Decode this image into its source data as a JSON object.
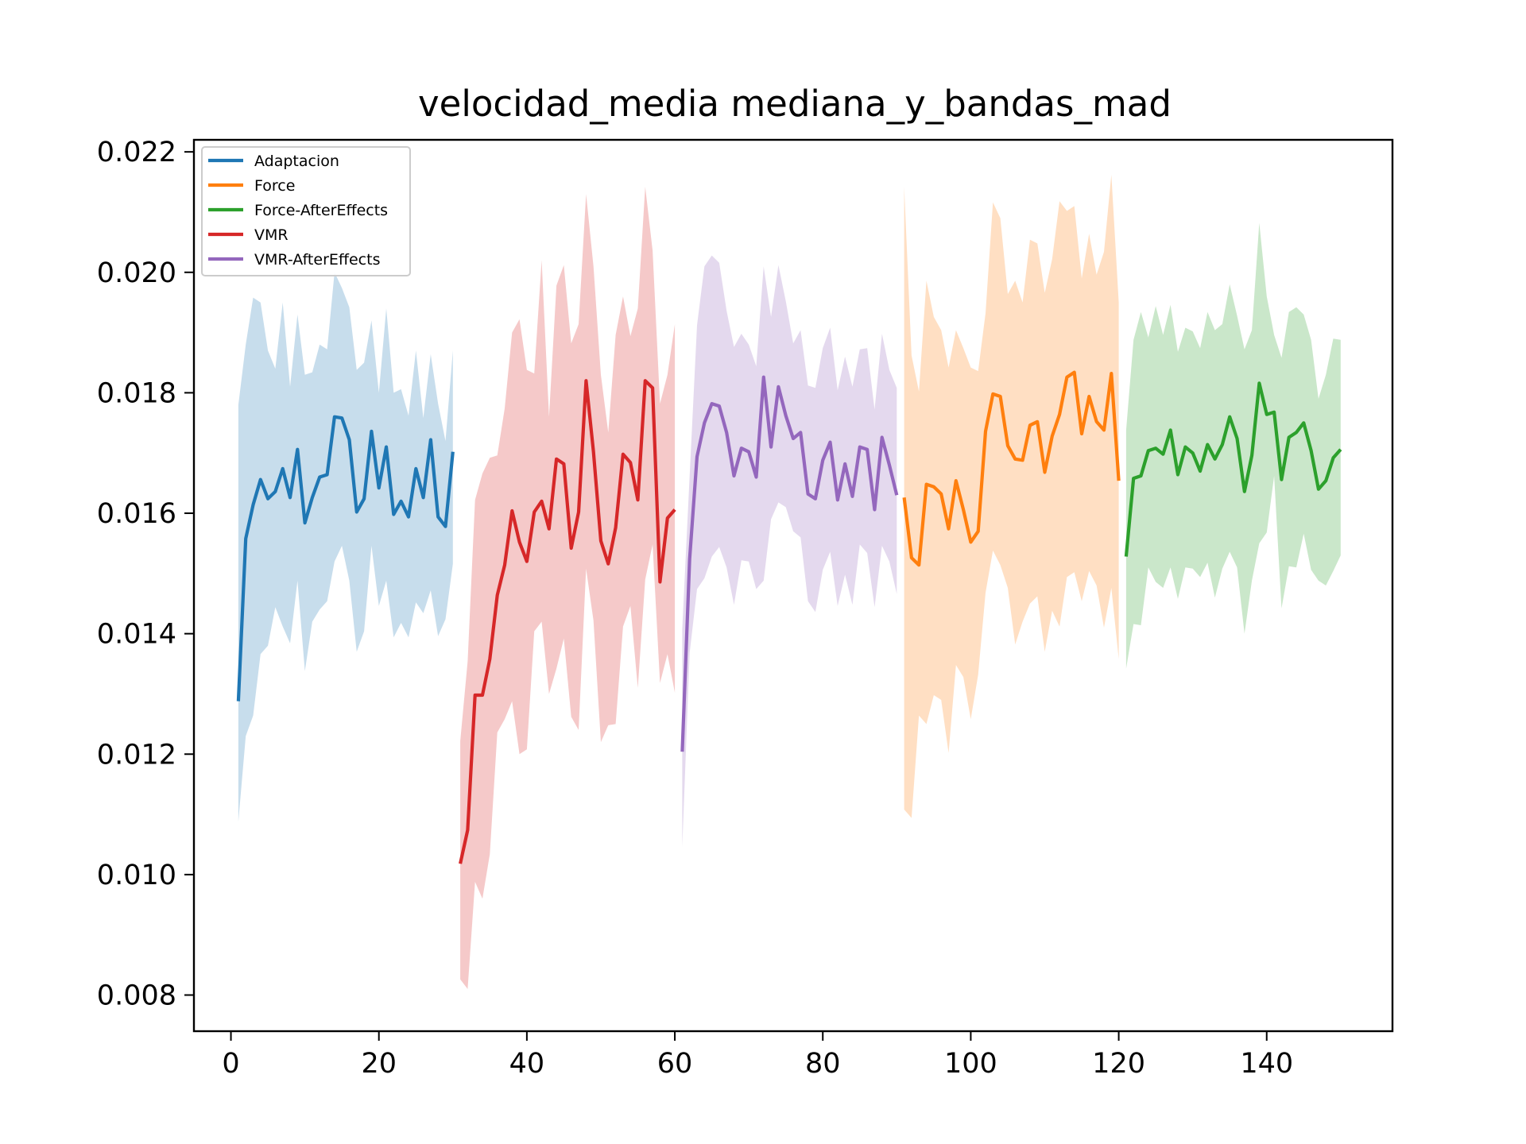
{
  "chart_data": {
    "type": "line",
    "title": "velocidad_media mediana_y_bandas_mad",
    "xlabel": "",
    "ylabel": "",
    "xlim": [
      -5,
      157
    ],
    "ylim": [
      0.0074,
      0.0222
    ],
    "xticks": [
      0,
      20,
      40,
      60,
      80,
      100,
      120,
      140
    ],
    "xtick_labels": [
      "0",
      "20",
      "40",
      "60",
      "80",
      "100",
      "120",
      "140"
    ],
    "yticks": [
      0.008,
      0.01,
      0.012,
      0.014,
      0.016,
      0.018,
      0.02,
      0.022
    ],
    "ytick_labels": [
      "0.008",
      "0.010",
      "0.012",
      "0.014",
      "0.016",
      "0.018",
      "0.020",
      "0.022"
    ],
    "grid": false,
    "legend_position": "top-left",
    "series": [
      {
        "name": "Adaptacion",
        "color": "#1f77b4",
        "x_start": 1,
        "median": [
          0.01288,
          0.01558,
          0.01614,
          0.01656,
          0.01624,
          0.01636,
          0.01674,
          0.01626,
          0.01706,
          0.01584,
          0.01626,
          0.0166,
          0.01664,
          0.0176,
          0.01758,
          0.01722,
          0.01602,
          0.01624,
          0.01736,
          0.01642,
          0.0171,
          0.01598,
          0.0162,
          0.01594,
          0.01674,
          0.01626,
          0.01722,
          0.01594,
          0.01578,
          0.01702
        ],
        "upper": [
          0.0178,
          0.0188,
          0.01958,
          0.0195,
          0.0187,
          0.0184,
          0.0195,
          0.0181,
          0.0193,
          0.0183,
          0.01834,
          0.0188,
          0.01872,
          0.02,
          0.01974,
          0.01942,
          0.01838,
          0.0185,
          0.0192,
          0.018,
          0.0194,
          0.018,
          0.01806,
          0.01762,
          0.0187,
          0.01758,
          0.01864,
          0.01782,
          0.0172,
          0.0187
        ],
        "lower": [
          0.01088,
          0.0123,
          0.01264,
          0.01366,
          0.0138,
          0.01444,
          0.01412,
          0.01384,
          0.01488,
          0.01338,
          0.0142,
          0.0144,
          0.01454,
          0.0152,
          0.01546,
          0.01488,
          0.0137,
          0.01404,
          0.01546,
          0.01446,
          0.01488,
          0.01394,
          0.01418,
          0.01394,
          0.01452,
          0.01434,
          0.01472,
          0.01396,
          0.01424,
          0.01516
        ]
      },
      {
        "name": "Force",
        "color": "#ff7f0e",
        "x_start": 91,
        "median": [
          0.01626,
          0.01526,
          0.01514,
          0.01648,
          0.01644,
          0.01632,
          0.01574,
          0.01654,
          0.01606,
          0.01552,
          0.0157,
          0.01736,
          0.01798,
          0.01794,
          0.01712,
          0.0169,
          0.01688,
          0.01746,
          0.01752,
          0.01668,
          0.01728,
          0.01764,
          0.01826,
          0.01834,
          0.01732,
          0.01794,
          0.01752,
          0.01738,
          0.01832,
          0.01654
        ],
        "upper": [
          0.02142,
          0.01862,
          0.01802,
          0.01986,
          0.01926,
          0.01904,
          0.01842,
          0.01904,
          0.01874,
          0.01842,
          0.01836,
          0.01932,
          0.02116,
          0.0209,
          0.01964,
          0.01986,
          0.0195,
          0.02054,
          0.02048,
          0.01966,
          0.02022,
          0.02118,
          0.02102,
          0.0211,
          0.0199,
          0.02064,
          0.01996,
          0.02034,
          0.02162,
          0.0195
        ],
        "lower": [
          0.01108,
          0.01094,
          0.01264,
          0.0125,
          0.01298,
          0.0129,
          0.01202,
          0.01348,
          0.01328,
          0.01258,
          0.01332,
          0.01468,
          0.01538,
          0.01514,
          0.01476,
          0.01382,
          0.0142,
          0.0145,
          0.01462,
          0.0137,
          0.01438,
          0.01412,
          0.01494,
          0.01502,
          0.01454,
          0.01504,
          0.0148,
          0.0141,
          0.01476,
          0.01358
        ]
      },
      {
        "name": "Force-AfterEffects",
        "color": "#2ca02c",
        "x_start": 121,
        "median": [
          0.01528,
          0.01658,
          0.01662,
          0.01704,
          0.01708,
          0.01698,
          0.01738,
          0.01664,
          0.0171,
          0.017,
          0.0167,
          0.01714,
          0.0169,
          0.01714,
          0.0176,
          0.01724,
          0.01636,
          0.01696,
          0.01816,
          0.01764,
          0.01768,
          0.01656,
          0.01726,
          0.01734,
          0.0175,
          0.01704,
          0.0164,
          0.01654,
          0.01692,
          0.01706
        ],
        "upper": [
          0.01738,
          0.01888,
          0.01934,
          0.01892,
          0.01944,
          0.01896,
          0.01946,
          0.01868,
          0.01908,
          0.01902,
          0.01874,
          0.01934,
          0.01904,
          0.01914,
          0.0198,
          0.01928,
          0.01872,
          0.01904,
          0.02082,
          0.0196,
          0.01896,
          0.01858,
          0.01934,
          0.01942,
          0.0193,
          0.01888,
          0.0179,
          0.0183,
          0.0189,
          0.01888
        ],
        "lower": [
          0.01342,
          0.01416,
          0.01414,
          0.0151,
          0.01486,
          0.01476,
          0.0151,
          0.01458,
          0.0151,
          0.01508,
          0.01494,
          0.01518,
          0.0146,
          0.01508,
          0.01536,
          0.0151,
          0.014,
          0.01488,
          0.0155,
          0.01568,
          0.01662,
          0.01442,
          0.01512,
          0.0151,
          0.01566,
          0.01506,
          0.01488,
          0.0148,
          0.01504,
          0.0153
        ]
      },
      {
        "name": "VMR",
        "color": "#d62728",
        "x_start": 31,
        "median": [
          0.01018,
          0.01074,
          0.01298,
          0.01298,
          0.01358,
          0.01464,
          0.01514,
          0.01604,
          0.01552,
          0.0152,
          0.01602,
          0.0162,
          0.01574,
          0.0169,
          0.01682,
          0.01542,
          0.01602,
          0.0182,
          0.01702,
          0.01554,
          0.01516,
          0.01576,
          0.01698,
          0.01684,
          0.01622,
          0.0182,
          0.01808,
          0.01486,
          0.01592,
          0.01606
        ],
        "upper": [
          0.01222,
          0.01354,
          0.01622,
          0.01666,
          0.01692,
          0.01696,
          0.01774,
          0.019,
          0.01922,
          0.01838,
          0.01832,
          0.0202,
          0.0176,
          0.01978,
          0.02012,
          0.01882,
          0.01914,
          0.0213,
          0.0201,
          0.0183,
          0.01734,
          0.01896,
          0.0196,
          0.01894,
          0.0194,
          0.02142,
          0.02036,
          0.01782,
          0.0183,
          0.01914
        ],
        "lower": [
          0.00826,
          0.0081,
          0.00988,
          0.0096,
          0.01034,
          0.01236,
          0.01258,
          0.01288,
          0.012,
          0.01208,
          0.01404,
          0.0142,
          0.013,
          0.01342,
          0.01392,
          0.01262,
          0.0124,
          0.01508,
          0.01422,
          0.0122,
          0.01248,
          0.0125,
          0.01412,
          0.01446,
          0.0131,
          0.0149,
          0.01548,
          0.01318,
          0.01366,
          0.01302
        ]
      },
      {
        "name": "VMR-AfterEffects",
        "color": "#9467bd",
        "x_start": 61,
        "median": [
          0.01204,
          0.01524,
          0.01694,
          0.0175,
          0.01782,
          0.01778,
          0.01734,
          0.01662,
          0.01708,
          0.01702,
          0.0166,
          0.01826,
          0.0171,
          0.0181,
          0.01762,
          0.01724,
          0.01734,
          0.01632,
          0.01624,
          0.01688,
          0.01718,
          0.01622,
          0.01682,
          0.01628,
          0.0171,
          0.01706,
          0.01606,
          0.01726,
          0.0168,
          0.0163
        ],
        "upper": [
          0.01408,
          0.01662,
          0.01912,
          0.0201,
          0.02028,
          0.02016,
          0.01936,
          0.01876,
          0.01898,
          0.0188,
          0.01844,
          0.0201,
          0.01926,
          0.02012,
          0.01952,
          0.01882,
          0.01904,
          0.01812,
          0.01808,
          0.01874,
          0.01908,
          0.01804,
          0.0186,
          0.0181,
          0.01872,
          0.01874,
          0.01772,
          0.01898,
          0.01838,
          0.01808
        ],
        "lower": [
          0.01046,
          0.01368,
          0.01474,
          0.01492,
          0.01528,
          0.01544,
          0.0151,
          0.01448,
          0.01522,
          0.0152,
          0.01474,
          0.01488,
          0.0159,
          0.01618,
          0.0161,
          0.0157,
          0.0156,
          0.01454,
          0.01436,
          0.01506,
          0.01536,
          0.01446,
          0.01498,
          0.01448,
          0.01548,
          0.01534,
          0.01444,
          0.01546,
          0.0152,
          0.01466
        ]
      }
    ]
  }
}
